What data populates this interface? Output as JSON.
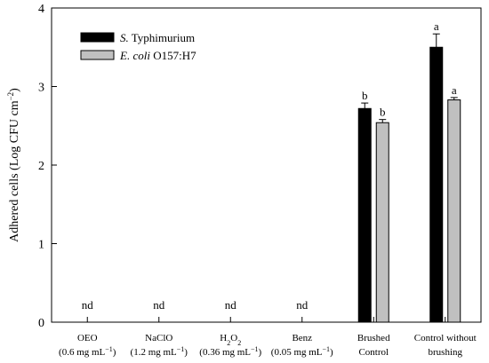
{
  "chart_data": {
    "type": "bar",
    "ylabel_main": "Adhered cells (Log CFU cm",
    "ylabel_sup": "−2",
    "ylabel_close": ")",
    "ylim": [
      0,
      4
    ],
    "yticks": [
      "0",
      "1",
      "2",
      "3",
      "4"
    ],
    "grid": false,
    "legend_position": "top-left",
    "categories": [
      {
        "line1_pre": "OEO",
        "line1_sub": "",
        "line1_post": "",
        "line2_pre": "(0.6 mg mL",
        "line2_sup": "−1",
        "line2_post": ")"
      },
      {
        "line1_pre": "NaClO",
        "line1_sub": "",
        "line1_post": "",
        "line2_pre": "(1.2 mg mL",
        "line2_sup": "−1",
        "line2_post": ")"
      },
      {
        "line1_pre": "H",
        "line1_sub": "2",
        "line1_post": "O",
        "line1_sub2": "2",
        "line2_pre": "(0.36 mg mL",
        "line2_sup": "−1",
        "line2_post": ")"
      },
      {
        "line1_pre": "Benz",
        "line1_sub": "",
        "line1_post": "",
        "line2_pre": "(0.05 mg mL",
        "line2_sup": "−1",
        "line2_post": ")"
      },
      {
        "line1_pre": "Brushed",
        "line1_sub": "",
        "line1_post": "",
        "line2_pre": "Control",
        "line2_sup": "",
        "line2_post": ""
      },
      {
        "line1_pre": "Control without",
        "line1_sub": "",
        "line1_post": "",
        "line2_pre": "brushing",
        "line2_sup": "",
        "line2_post": ""
      }
    ],
    "series": [
      {
        "name_italic": "S.",
        "name_rest": " Typhimurium",
        "color": "#000000",
        "values": [
          null,
          null,
          null,
          null,
          2.72,
          3.5
        ],
        "errors": [
          0,
          0,
          0,
          0,
          0.07,
          0.17
        ],
        "labels": [
          "",
          "",
          "",
          "",
          "b",
          "a"
        ]
      },
      {
        "name_italic": "E. coli",
        "name_rest": " O157:H7",
        "color": "#c0c0c0",
        "values": [
          null,
          null,
          null,
          null,
          2.54,
          2.83
        ],
        "errors": [
          0,
          0,
          0,
          0,
          0.04,
          0.03
        ],
        "labels": [
          "",
          "",
          "",
          "",
          "b",
          "a"
        ]
      }
    ],
    "nd_text": "nd",
    "nd_categories": [
      0,
      1,
      2,
      3
    ]
  }
}
